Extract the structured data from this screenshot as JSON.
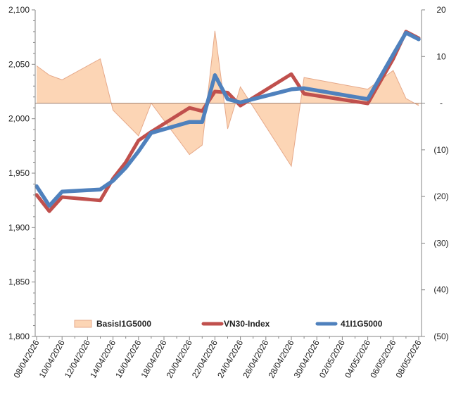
{
  "chart_data": {
    "type": "line",
    "title": "",
    "x": [
      "08/04/2026",
      "09/04/2026",
      "10/04/2026",
      "13/04/2026",
      "14/04/2026",
      "15/04/2026",
      "16/04/2026",
      "17/04/2026",
      "20/04/2026",
      "21/04/2026",
      "22/04/2026",
      "23/04/2026",
      "24/04/2026",
      "27/04/2026",
      "28/04/2026",
      "29/04/2026",
      "04/05/2026",
      "05/05/2026",
      "06/05/2026",
      "07/05/2026",
      "08/05/2026"
    ],
    "x_tick_labels": [
      "08/04/2026",
      "10/04/2026",
      "12/04/2026",
      "14/04/2026",
      "16/04/2026",
      "18/04/2026",
      "20/04/2026",
      "22/04/2026",
      "24/04/2026",
      "26/04/2026",
      "28/04/2026",
      "30/04/2026",
      "02/05/2026",
      "04/05/2026",
      "06/05/2026",
      "08/05/2026"
    ],
    "left_axis": {
      "ylim": [
        1800,
        2100
      ],
      "tick_labels": [
        "1,800",
        "1,850",
        "1,900",
        "1,950",
        "2,000",
        "2,050",
        "2,100"
      ],
      "tick_values": [
        1800,
        1850,
        1900,
        1950,
        2000,
        2050,
        2100
      ]
    },
    "right_axis": {
      "ylim": [
        -50,
        20
      ],
      "tick_labels": [
        "(50)",
        "(40)",
        "(30)",
        "(20)",
        "(10)",
        "-",
        "10",
        "20"
      ],
      "tick_values": [
        -50,
        -40,
        -30,
        -20,
        -10,
        0,
        10,
        20
      ]
    },
    "series": [
      {
        "name": "BasisI1G5000",
        "type": "area",
        "axis": "right",
        "color": "#fcd5b5",
        "edge_color": "#e6a98a",
        "points": [
          [
            "08/04/2026",
            8
          ],
          [
            "09/04/2026",
            6
          ],
          [
            "10/04/2026",
            5
          ],
          [
            "13/04/2026",
            9.5
          ],
          [
            "14/04/2026",
            -1.5
          ],
          [
            "16/04/2026",
            -7
          ],
          [
            "17/04/2026",
            0
          ],
          [
            "20/04/2026",
            -11
          ],
          [
            "21/04/2026",
            -9
          ],
          [
            "22/04/2026",
            15.5
          ],
          [
            "23/04/2026",
            -5.5
          ],
          [
            "24/04/2026",
            3.5
          ],
          [
            "28/04/2026",
            -13.5
          ],
          [
            "29/04/2026",
            5.5
          ],
          [
            "04/05/2026",
            3
          ],
          [
            "06/05/2026",
            7
          ],
          [
            "07/05/2026",
            1
          ],
          [
            "08/05/2026",
            -0.5
          ]
        ]
      },
      {
        "name": "VN30-Index",
        "type": "line",
        "axis": "left",
        "color": "#c0504d",
        "points": [
          [
            "08/04/2026",
            1930
          ],
          [
            "09/04/2026",
            1915
          ],
          [
            "10/04/2026",
            1928
          ],
          [
            "13/04/2026",
            1925
          ],
          [
            "14/04/2026",
            1945
          ],
          [
            "15/04/2026",
            1960
          ],
          [
            "16/04/2026",
            1980
          ],
          [
            "17/04/2026",
            1988
          ],
          [
            "20/04/2026",
            2010
          ],
          [
            "21/04/2026",
            2007
          ],
          [
            "22/04/2026",
            2025
          ],
          [
            "23/04/2026",
            2024
          ],
          [
            "24/04/2026",
            2012
          ],
          [
            "28/04/2026",
            2041
          ],
          [
            "29/04/2026",
            2023
          ],
          [
            "04/05/2026",
            2014
          ],
          [
            "06/05/2026",
            2055
          ],
          [
            "07/05/2026",
            2080
          ],
          [
            "08/05/2026",
            2074
          ]
        ]
      },
      {
        "name": "41I1G5000",
        "type": "line",
        "axis": "left",
        "color": "#4f81bd",
        "points": [
          [
            "08/04/2026",
            1938
          ],
          [
            "09/04/2026",
            1920
          ],
          [
            "10/04/2026",
            1933
          ],
          [
            "13/04/2026",
            1935
          ],
          [
            "14/04/2026",
            1943
          ],
          [
            "15/04/2026",
            1955
          ],
          [
            "16/04/2026",
            1970
          ],
          [
            "17/04/2026",
            1987
          ],
          [
            "20/04/2026",
            1997
          ],
          [
            "21/04/2026",
            1997
          ],
          [
            "22/04/2026",
            2040
          ],
          [
            "23/04/2026",
            2018
          ],
          [
            "24/04/2026",
            2015
          ],
          [
            "28/04/2026",
            2027
          ],
          [
            "29/04/2026",
            2028
          ],
          [
            "04/05/2026",
            2018
          ],
          [
            "06/05/2026",
            2059
          ],
          [
            "07/05/2026",
            2079
          ],
          [
            "08/05/2026",
            2073
          ]
        ]
      }
    ],
    "legend": {
      "placement": "bottom-inside",
      "entries": [
        "BasisI1G5000",
        "VN30-Index",
        "41I1G5000"
      ]
    },
    "grid": false
  }
}
